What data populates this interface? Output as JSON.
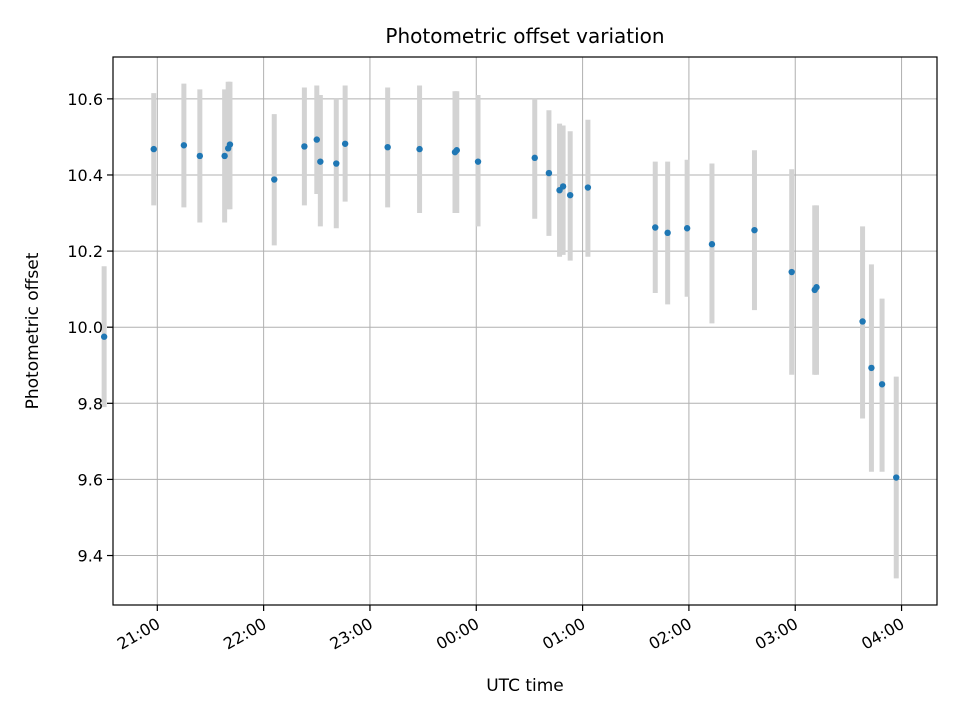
{
  "chart_data": {
    "type": "scatter",
    "title": "Photometric offset variation",
    "xlabel": "UTC time",
    "ylabel": "Photometric offset",
    "x_unit": "UTC time (hours past midnight of first day; values > 24 are next day)",
    "xlim": [
      "20:35",
      "04:20"
    ],
    "ylim": [
      9.27,
      10.71
    ],
    "x_ticks": [
      "21:00",
      "22:00",
      "23:00",
      "00:00",
      "01:00",
      "02:00",
      "03:00",
      "04:00"
    ],
    "y_ticks": [
      "9.4",
      "9.6",
      "9.8",
      "10.0",
      "10.2",
      "10.4",
      "10.6"
    ],
    "grid": true,
    "marker_color": "#1f77b4",
    "errorbar_color": "#d3d3d3",
    "points": [
      {
        "t": "20:30",
        "y": 9.975,
        "lo": 9.79,
        "hi": 10.16
      },
      {
        "t": "20:58",
        "y": 10.468,
        "lo": 10.32,
        "hi": 10.615
      },
      {
        "t": "21:15",
        "y": 10.478,
        "lo": 10.315,
        "hi": 10.64
      },
      {
        "t": "21:24",
        "y": 10.45,
        "lo": 10.275,
        "hi": 10.625
      },
      {
        "t": "21:38",
        "y": 10.45,
        "lo": 10.275,
        "hi": 10.625
      },
      {
        "t": "21:40",
        "y": 10.47,
        "lo": 10.31,
        "hi": 10.645
      },
      {
        "t": "21:41",
        "y": 10.48,
        "lo": 10.31,
        "hi": 10.645
      },
      {
        "t": "22:06",
        "y": 10.388,
        "lo": 10.215,
        "hi": 10.56
      },
      {
        "t": "22:23",
        "y": 10.475,
        "lo": 10.32,
        "hi": 10.63
      },
      {
        "t": "22:30",
        "y": 10.493,
        "lo": 10.35,
        "hi": 10.635
      },
      {
        "t": "22:32",
        "y": 10.435,
        "lo": 10.265,
        "hi": 10.61
      },
      {
        "t": "22:41",
        "y": 10.43,
        "lo": 10.26,
        "hi": 10.6
      },
      {
        "t": "22:46",
        "y": 10.482,
        "lo": 10.33,
        "hi": 10.635
      },
      {
        "t": "23:10",
        "y": 10.473,
        "lo": 10.315,
        "hi": 10.63
      },
      {
        "t": "23:28",
        "y": 10.468,
        "lo": 10.3,
        "hi": 10.635
      },
      {
        "t": "23:48",
        "y": 10.46,
        "lo": 10.3,
        "hi": 10.62
      },
      {
        "t": "23:49",
        "y": 10.465,
        "lo": 10.3,
        "hi": 10.62
      },
      {
        "t": "00:01",
        "y": 10.435,
        "lo": 10.265,
        "hi": 10.61
      },
      {
        "t": "00:33",
        "y": 10.445,
        "lo": 10.285,
        "hi": 10.6
      },
      {
        "t": "00:41",
        "y": 10.405,
        "lo": 10.24,
        "hi": 10.57
      },
      {
        "t": "00:47",
        "y": 10.36,
        "lo": 10.185,
        "hi": 10.535
      },
      {
        "t": "00:49",
        "y": 10.37,
        "lo": 10.19,
        "hi": 10.53
      },
      {
        "t": "00:53",
        "y": 10.347,
        "lo": 10.175,
        "hi": 10.515
      },
      {
        "t": "01:03",
        "y": 10.367,
        "lo": 10.185,
        "hi": 10.545
      },
      {
        "t": "01:41",
        "y": 10.262,
        "lo": 10.09,
        "hi": 10.435
      },
      {
        "t": "01:48",
        "y": 10.248,
        "lo": 10.06,
        "hi": 10.435
      },
      {
        "t": "01:59",
        "y": 10.26,
        "lo": 10.08,
        "hi": 10.44
      },
      {
        "t": "02:13",
        "y": 10.218,
        "lo": 10.01,
        "hi": 10.43
      },
      {
        "t": "02:37",
        "y": 10.255,
        "lo": 10.045,
        "hi": 10.465
      },
      {
        "t": "02:58",
        "y": 10.145,
        "lo": 9.875,
        "hi": 10.415
      },
      {
        "t": "03:11",
        "y": 10.098,
        "lo": 9.875,
        "hi": 10.32
      },
      {
        "t": "03:12",
        "y": 10.105,
        "lo": 9.875,
        "hi": 10.32
      },
      {
        "t": "03:38",
        "y": 10.015,
        "lo": 9.76,
        "hi": 10.265
      },
      {
        "t": "03:43",
        "y": 9.893,
        "lo": 9.62,
        "hi": 10.165
      },
      {
        "t": "03:49",
        "y": 9.85,
        "lo": 9.62,
        "hi": 10.075
      },
      {
        "t": "03:57",
        "y": 9.605,
        "lo": 9.34,
        "hi": 9.87
      }
    ]
  }
}
